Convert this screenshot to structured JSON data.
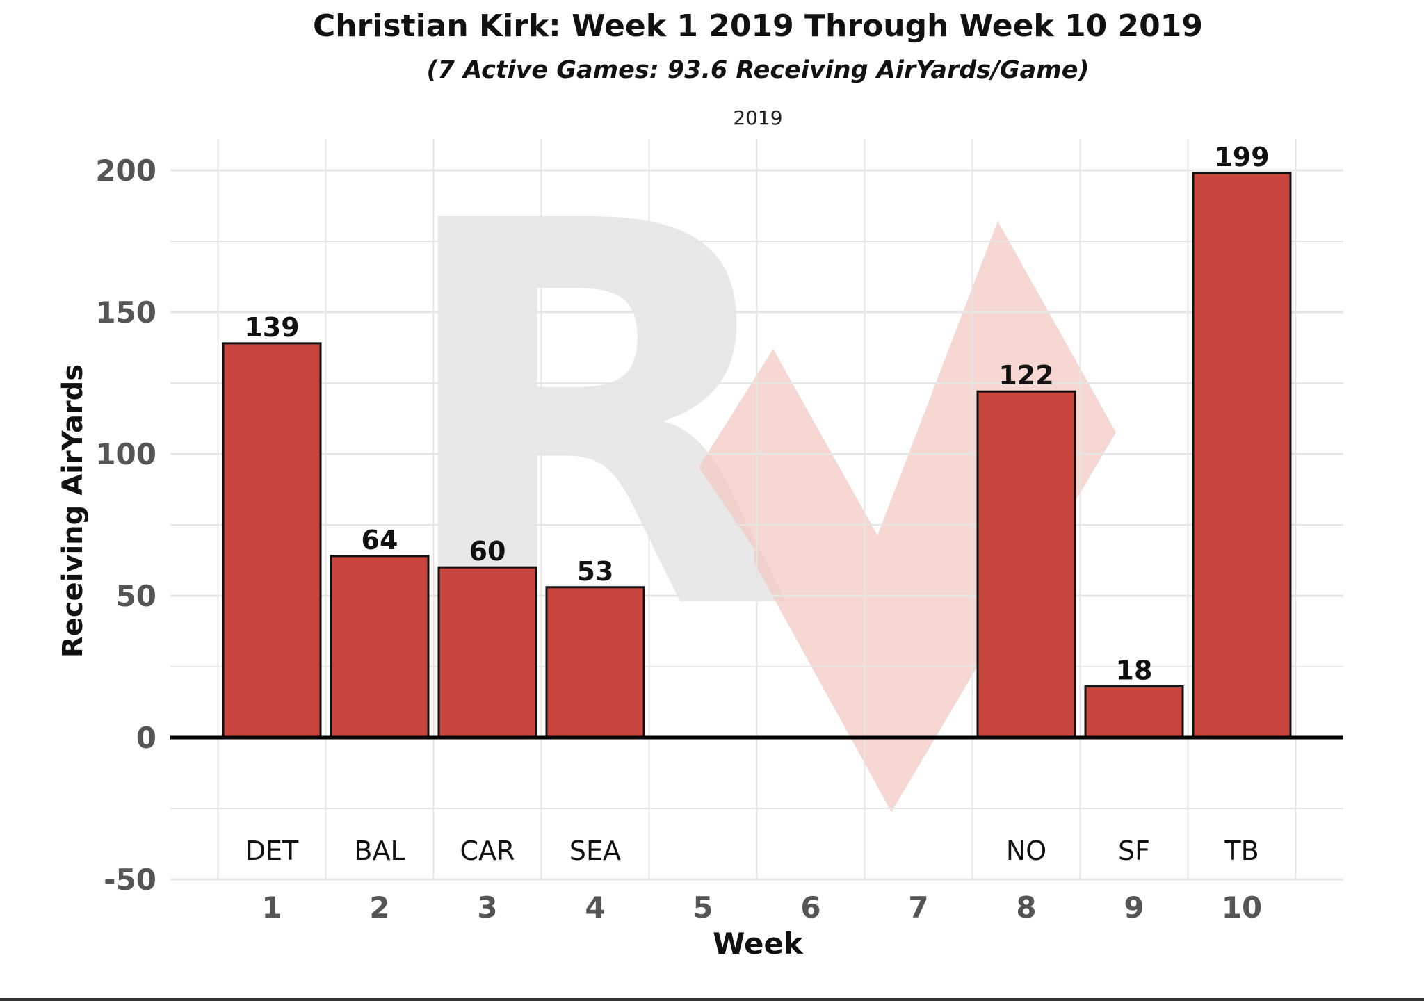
{
  "colors": {
    "bar_fill": "#C9463F",
    "bar_stroke": "#111111",
    "grid": "#E6E6E6",
    "zero_line": "#000000",
    "watermark_gray": "#E8E8E8",
    "watermark_pink": "#F3C9C3"
  },
  "watermark": {
    "text": "R",
    "icon": "rv-logo-watermark"
  },
  "chart_data": {
    "type": "bar",
    "title": "Christian Kirk: Week 1 2019 Through Week 10 2019",
    "subtitle": "(7 Active Games: 93.6 Receiving AirYards/Game)",
    "facet_label": "2019",
    "xlabel": "Week",
    "ylabel": "Receiving AirYards",
    "categories": [
      "1",
      "2",
      "3",
      "4",
      "5",
      "6",
      "7",
      "8",
      "9",
      "10"
    ],
    "values": [
      139,
      64,
      60,
      53,
      null,
      null,
      null,
      122,
      18,
      199
    ],
    "opponents": [
      "DET",
      "BAL",
      "CAR",
      "SEA",
      "",
      "",
      "",
      "NO",
      "SF",
      "TB"
    ],
    "ylim": [
      -50,
      200
    ],
    "yticks": [
      -50,
      0,
      50,
      100,
      150,
      200
    ],
    "grid": true,
    "legend": "none"
  }
}
